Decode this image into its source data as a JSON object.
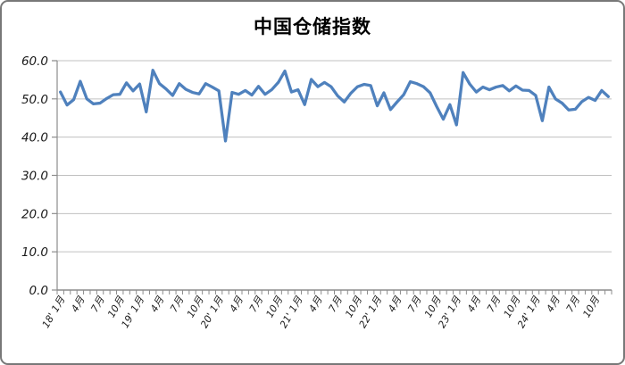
{
  "chart_data": {
    "type": "line",
    "title": "中国仓储指数",
    "x_range": "2018-01 to 2024-12",
    "n_points": 84,
    "categories": [
      "2018-01",
      "2018-02",
      "2018-03",
      "2018-04",
      "2018-05",
      "2018-06",
      "2018-07",
      "2018-08",
      "2018-09",
      "2018-10",
      "2018-11",
      "2018-12",
      "2019-01",
      "2019-02",
      "2019-03",
      "2019-04",
      "2019-05",
      "2019-06",
      "2019-07",
      "2019-08",
      "2019-09",
      "2019-10",
      "2019-11",
      "2019-12",
      "2020-01",
      "2020-02",
      "2020-03",
      "2020-04",
      "2020-05",
      "2020-06",
      "2020-07",
      "2020-08",
      "2020-09",
      "2020-10",
      "2020-11",
      "2020-12",
      "2021-01",
      "2021-02",
      "2021-03",
      "2021-04",
      "2021-05",
      "2021-06",
      "2021-07",
      "2021-08",
      "2021-09",
      "2021-10",
      "2021-11",
      "2021-12",
      "2022-01",
      "2022-02",
      "2022-03",
      "2022-04",
      "2022-05",
      "2022-06",
      "2022-07",
      "2022-08",
      "2022-09",
      "2022-10",
      "2022-11",
      "2022-12",
      "2023-01",
      "2023-02",
      "2023-03",
      "2023-04",
      "2023-05",
      "2023-06",
      "2023-07",
      "2023-08",
      "2023-09",
      "2023-10",
      "2023-11",
      "2023-12",
      "2024-01",
      "2024-02",
      "2024-03",
      "2024-04",
      "2024-05",
      "2024-06",
      "2024-07",
      "2024-08",
      "2024-09",
      "2024-10",
      "2024-11",
      "2024-12"
    ],
    "series": [
      {
        "name": "中国仓储指数",
        "values": [
          51.8,
          48.4,
          49.8,
          54.6,
          50.0,
          48.7,
          48.9,
          50.1,
          51.1,
          51.2,
          54.2,
          52.1,
          53.9,
          46.6,
          57.5,
          54.0,
          52.6,
          50.9,
          54.0,
          52.5,
          51.7,
          51.3,
          54.0,
          53.1,
          52.1,
          39.0,
          51.7,
          51.2,
          52.2,
          51.0,
          53.3,
          51.2,
          52.4,
          54.3,
          57.3,
          51.8,
          52.4,
          48.5,
          55.1,
          53.2,
          54.3,
          53.2,
          50.8,
          49.2,
          51.5,
          53.2,
          53.8,
          53.5,
          48.2,
          51.6,
          47.2,
          49.2,
          51.1,
          54.5,
          54.0,
          53.2,
          51.6,
          48.0,
          44.7,
          48.5,
          43.2,
          56.9,
          53.9,
          51.8,
          53.1,
          52.4,
          53.1,
          53.5,
          52.1,
          53.4,
          52.3,
          52.2,
          50.9,
          44.3,
          53.1,
          50.0,
          48.9,
          47.1,
          47.3,
          49.3,
          50.4,
          49.6,
          52.2,
          50.6
        ]
      }
    ],
    "x_tick_labels": [
      "18' 1月",
      "4月",
      "7月",
      "10月",
      "19' 1月",
      "4月",
      "7月",
      "10月",
      "20' 1月",
      "4月",
      "7月",
      "10月",
      "21' 1月",
      "4月",
      "7月",
      "10月",
      "22' 1月",
      "4月",
      "7月",
      "10月",
      "23' 1月",
      "4月",
      "7月",
      "10月",
      "24' 1月",
      "4月",
      "7月",
      "10月"
    ],
    "x_label_every_n_months": 3,
    "minor_x_ticks_monthly": true,
    "y_tick_labels": [
      "0.0",
      "10.0",
      "20.0",
      "30.0",
      "40.0",
      "50.0",
      "60.0"
    ],
    "ylim": [
      0,
      60
    ],
    "y_step": 10,
    "grid": true,
    "legend": false,
    "x_label_rotation_deg": 60,
    "colors": {
      "line": "#4f81bd",
      "grid": "#c0c0c0",
      "axis": "#8c8c8c",
      "text": "#1a1a1a",
      "title": "#000000",
      "frame_border": "#787878",
      "background": "#ffffff"
    }
  }
}
